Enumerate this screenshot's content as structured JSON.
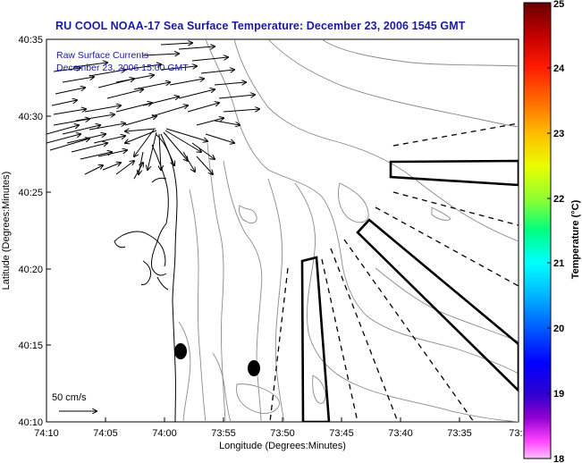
{
  "title": "RU COOL  NOAA-17  Sea Surface Temperature:  December 23, 2006 1545 GMT",
  "legend_line1": "Raw Surface Currents",
  "legend_line2": "December 23, 2006 15:00 GMT",
  "scale_label": "50 cm/s",
  "xlabel": "Longitude (Degrees:Minutes)",
  "ylabel": "Latitude (Degrees:Minutes)",
  "x_ticks": [
    "74:10",
    "74:05",
    "74:00",
    "73:55",
    "73:50",
    "73:45",
    "73:40",
    "73:35",
    "73:3"
  ],
  "y_ticks": [
    "40:35",
    "40:30",
    "40:25",
    "40:20",
    "40:15",
    "40:10"
  ],
  "colorbar": {
    "label": "Temperature (°C)",
    "ticks": [
      "25",
      "24",
      "23",
      "22",
      "21",
      "20",
      "19",
      "18"
    ],
    "range": [
      18,
      25
    ],
    "colors": [
      "#7a0000",
      "#c80000",
      "#ff2a00",
      "#ff7a00",
      "#ffc800",
      "#e8ff00",
      "#80ff40",
      "#00ff90",
      "#00ffff",
      "#00b0ff",
      "#0060ff",
      "#0000ff",
      "#4000d0",
      "#a000d0",
      "#ff40ff",
      "#ffb0ff"
    ]
  }
}
